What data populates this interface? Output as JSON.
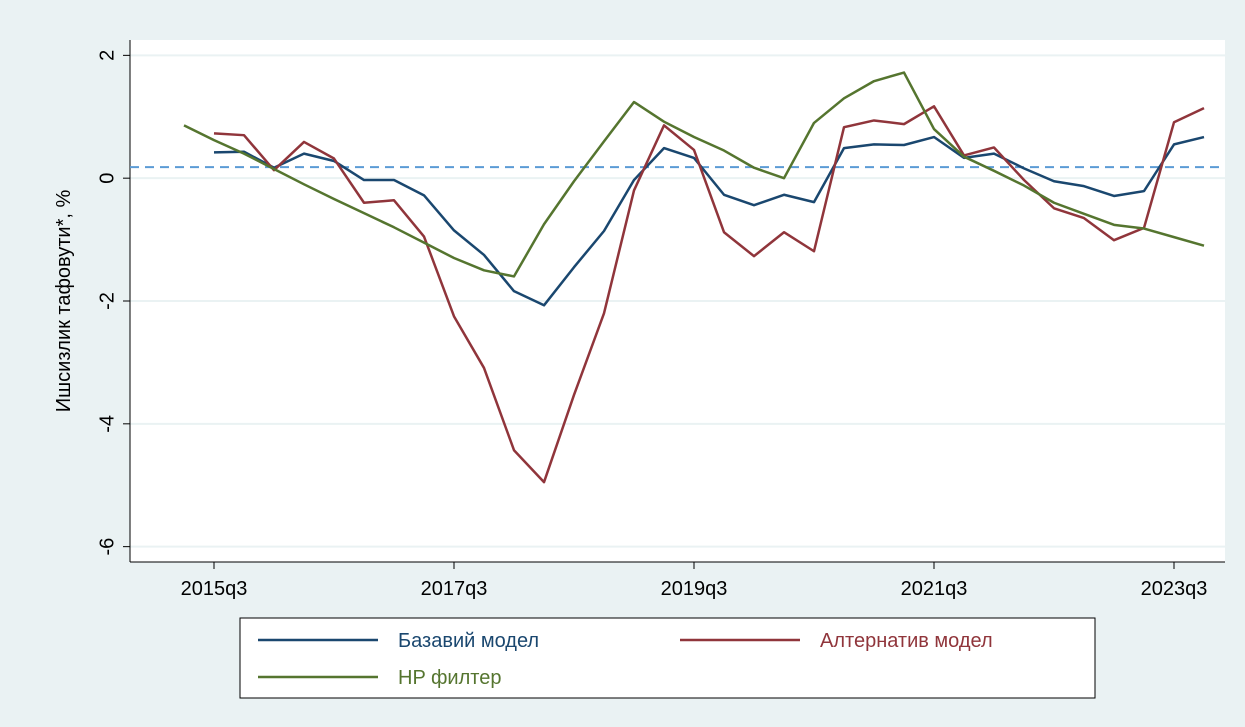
{
  "chart_data": {
    "type": "line",
    "y_label": "Ишсизлик тафовути*, %",
    "categories": [
      null,
      "2015q3",
      null,
      null,
      null,
      null,
      null,
      null,
      null,
      "2017q3",
      null,
      null,
      null,
      null,
      null,
      null,
      null,
      "2019q3",
      null,
      null,
      null,
      null,
      null,
      null,
      null,
      "2021q3",
      null,
      null,
      null,
      null,
      null,
      null,
      null,
      "2023q3",
      null
    ],
    "series": [
      {
        "name": "Базавий модел",
        "color": "#1a476f",
        "values": [
          null,
          0.42,
          0.43,
          0.17,
          0.4,
          0.28,
          -0.03,
          -0.03,
          -0.28,
          -0.85,
          -1.25,
          -1.84,
          -2.07,
          -1.45,
          -0.86,
          -0.03,
          0.49,
          0.33,
          -0.27,
          -0.44,
          -0.27,
          -0.39,
          0.49,
          0.55,
          0.54,
          0.67,
          0.33,
          0.4,
          0.16,
          -0.05,
          -0.13,
          -0.29,
          -0.21,
          0.55,
          0.67
        ]
      },
      {
        "name": "Алтернатив модел",
        "color": "#90353b",
        "values": [
          null,
          0.73,
          0.7,
          0.13,
          0.59,
          0.32,
          -0.4,
          -0.36,
          -0.95,
          -2.25,
          -3.09,
          -4.43,
          -4.95,
          -3.53,
          -2.2,
          -0.2,
          0.86,
          0.46,
          -0.88,
          -1.27,
          -0.88,
          -1.19,
          0.83,
          0.94,
          0.88,
          1.17,
          0.37,
          0.5,
          -0.03,
          -0.49,
          -0.65,
          -1.01,
          -0.81,
          0.91,
          1.14
        ]
      },
      {
        "name": "HP филтер",
        "color": "#55752f",
        "values": [
          0.86,
          0.62,
          0.4,
          0.15,
          -0.1,
          -0.34,
          -0.57,
          -0.8,
          -1.05,
          -1.3,
          -1.5,
          -1.6,
          -0.75,
          -0.05,
          0.6,
          1.24,
          0.92,
          0.67,
          0.45,
          0.17,
          0.0,
          0.9,
          1.3,
          1.58,
          1.72,
          0.8,
          0.35,
          0.12,
          -0.12,
          -0.4,
          -0.58,
          -0.76,
          -0.82,
          -0.96,
          -1.1
        ]
      }
    ],
    "reference_line": {
      "value": 0.18,
      "color": "#5b9bd5"
    },
    "ylim": [
      -6.25,
      2.25
    ],
    "yticks": [
      -6,
      -4,
      -2,
      0,
      2
    ],
    "grid": true
  }
}
